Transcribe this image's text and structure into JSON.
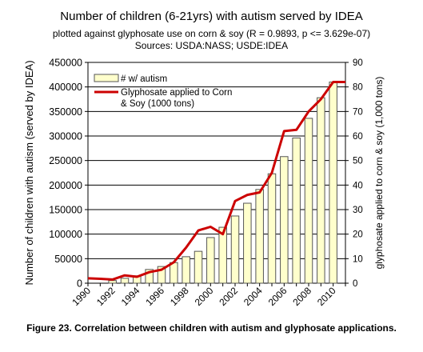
{
  "chart_data": {
    "type": "bar",
    "title": "Number of children (6-21yrs) with autism served by IDEA",
    "subtitle": "plotted against glyphosate use on corn & soy (R = 0.9893, p <= 3.629e-07)",
    "sources": "Sources: USDA:NASS; USDE:IDEA",
    "caption": "Figure 23. Correlation between children with autism and glyphosate applications.",
    "ylabel": "Number of children with autism (served by IDEA)",
    "y2label": "glyphosate applied to corn & soy (1,000 tons)",
    "ylim": [
      0,
      450000
    ],
    "y2lim": [
      0,
      90
    ],
    "yticks": [
      "0",
      "50000",
      "100000",
      "150000",
      "200000",
      "250000",
      "300000",
      "350000",
      "400000",
      "450000"
    ],
    "y2ticks": [
      "0",
      "10",
      "20",
      "30",
      "40",
      "50",
      "60",
      "70",
      "80",
      "90"
    ],
    "xticks": [
      "1990",
      "1992",
      "1994",
      "1996",
      "1998",
      "2000",
      "2002",
      "2004",
      "2006",
      "2008",
      "2010"
    ],
    "grid": "horizontal",
    "legend_placement": "top-left",
    "colors": {
      "bar_fill": "#ffffcc",
      "bar_stroke": "#555555",
      "line": "#cc0000"
    },
    "series": [
      {
        "name": "# w/ autism",
        "type": "bar",
        "axis": "left",
        "x": [
          1992,
          1993,
          1994,
          1995,
          1996,
          1997,
          1998,
          1999,
          2000,
          2001,
          2002,
          2003,
          2004,
          2005,
          2006,
          2007,
          2008,
          2009,
          2010
        ],
        "values": [
          5400,
          10000,
          15000,
          28000,
          34000,
          42000,
          54000,
          65000,
          93000,
          114000,
          137000,
          163000,
          191000,
          223000,
          258000,
          296000,
          336000,
          378000,
          410000
        ]
      },
      {
        "name": "Glyphosate applied to Corn & Soy (1000 tons)",
        "type": "line",
        "axis": "right",
        "x": [
          1990,
          1991,
          1992,
          1993,
          1994,
          1995,
          1996,
          1997,
          1998,
          1999,
          2000,
          2001,
          2002,
          2003,
          2004,
          2005,
          2006,
          2007,
          2008,
          2009,
          2010,
          2011
        ],
        "values": [
          2,
          1.8,
          1.5,
          3.2,
          2.6,
          4.5,
          5.5,
          8.5,
          14.5,
          21.5,
          23,
          20,
          33.5,
          36,
          37,
          45,
          62,
          62.5,
          70,
          75,
          82,
          82
        ]
      }
    ]
  }
}
